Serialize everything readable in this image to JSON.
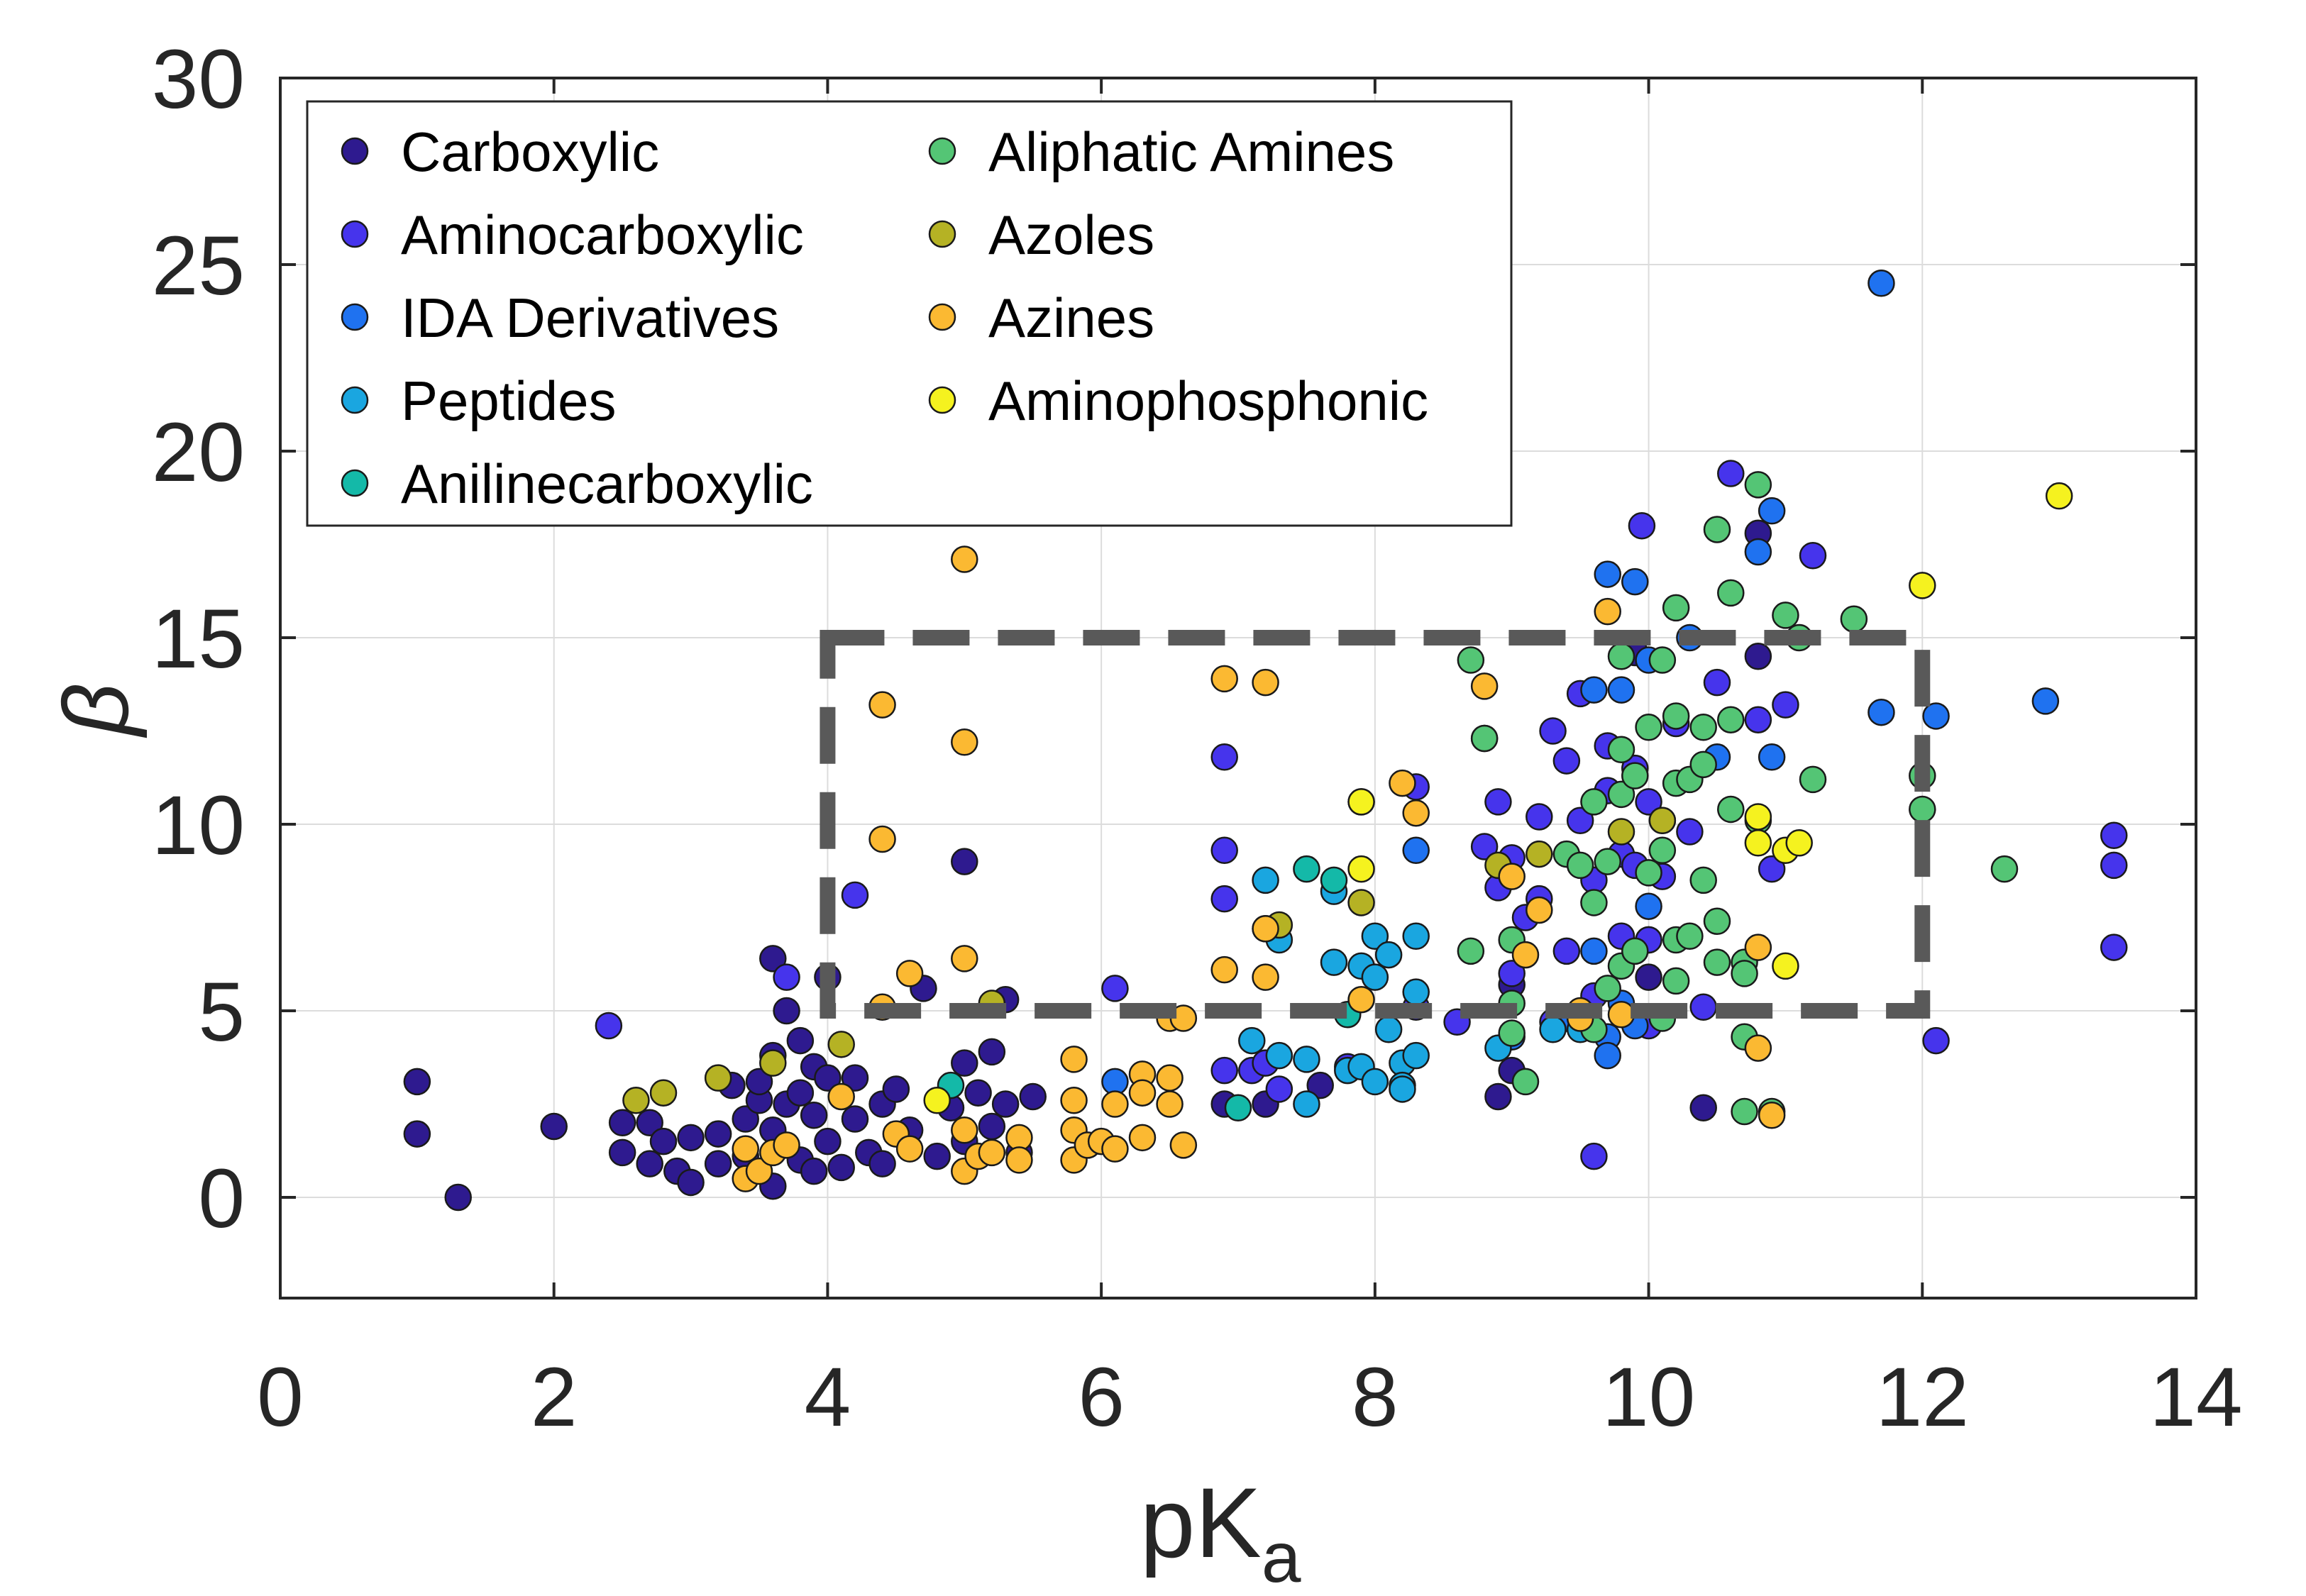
{
  "chart_data": {
    "type": "scatter",
    "xlabel": "pK",
    "xlabel_subscript": "a",
    "ylabel": "β",
    "xlim": [
      0,
      14
    ],
    "ylim": [
      -2.7,
      30
    ],
    "xticks": [
      "0",
      "2",
      "4",
      "6",
      "8",
      "10",
      "12",
      "14"
    ],
    "yticks": [
      "0",
      "5",
      "10",
      "15",
      "20",
      "25",
      "30"
    ],
    "grid": true,
    "legend_position": "top-left",
    "highlight_box": {
      "x0": 4,
      "x1": 12,
      "y0": 5,
      "y1": 15,
      "style": "dashed",
      "color": "#595959"
    },
    "series": [
      {
        "name": "Carboxylic",
        "color": "#2e1a8f",
        "points": [
          [
            1.0,
            3.1
          ],
          [
            1.0,
            1.7
          ],
          [
            1.3,
            0.0
          ],
          [
            2.0,
            1.9
          ],
          [
            2.5,
            2.0
          ],
          [
            2.5,
            1.2
          ],
          [
            2.7,
            2.0
          ],
          [
            2.7,
            0.9
          ],
          [
            2.8,
            1.5
          ],
          [
            2.9,
            0.7
          ],
          [
            3.0,
            0.4
          ],
          [
            3.0,
            1.6
          ],
          [
            3.2,
            1.7
          ],
          [
            3.2,
            0.9
          ],
          [
            3.3,
            3.0
          ],
          [
            3.4,
            2.1
          ],
          [
            3.4,
            1.1
          ],
          [
            3.5,
            2.6
          ],
          [
            3.5,
            3.1
          ],
          [
            3.6,
            3.8
          ],
          [
            3.6,
            1.8
          ],
          [
            3.6,
            0.3
          ],
          [
            3.6,
            6.4
          ],
          [
            3.7,
            2.5
          ],
          [
            3.7,
            5.0
          ],
          [
            3.8,
            4.2
          ],
          [
            3.8,
            2.8
          ],
          [
            3.8,
            1.0
          ],
          [
            3.9,
            3.5
          ],
          [
            3.9,
            2.2
          ],
          [
            3.9,
            0.7
          ],
          [
            4.0,
            1.5
          ],
          [
            4.0,
            3.2
          ],
          [
            4.0,
            5.9
          ],
          [
            4.1,
            0.8
          ],
          [
            4.2,
            2.1
          ],
          [
            4.2,
            3.2
          ],
          [
            4.3,
            1.2
          ],
          [
            4.4,
            2.5
          ],
          [
            4.4,
            0.9
          ],
          [
            4.5,
            2.9
          ],
          [
            4.6,
            1.8
          ],
          [
            4.7,
            5.6
          ],
          [
            4.8,
            1.1
          ],
          [
            4.9,
            2.4
          ],
          [
            5.0,
            3.6
          ],
          [
            5.0,
            9.0
          ],
          [
            5.0,
            1.5
          ],
          [
            5.1,
            2.8
          ],
          [
            5.2,
            3.9
          ],
          [
            5.2,
            1.9
          ],
          [
            5.3,
            5.3
          ],
          [
            5.3,
            2.5
          ],
          [
            5.4,
            1.2
          ],
          [
            5.5,
            2.7
          ],
          [
            6.9,
            2.5
          ],
          [
            7.2,
            2.5
          ],
          [
            7.6,
            3.0
          ],
          [
            8.9,
            2.7
          ],
          [
            9.0,
            5.7
          ],
          [
            9.0,
            3.4
          ],
          [
            9.9,
            14.6
          ],
          [
            10.0,
            6.9
          ],
          [
            10.0,
            5.9
          ],
          [
            10.4,
            2.4
          ],
          [
            10.8,
            14.5
          ],
          [
            10.8,
            17.8
          ]
        ]
      },
      {
        "name": "Aminocarboxylic",
        "color": "#4634ec",
        "points": [
          [
            2.4,
            4.6
          ],
          [
            3.7,
            5.9
          ],
          [
            4.2,
            8.1
          ],
          [
            6.1,
            5.6
          ],
          [
            6.9,
            9.3
          ],
          [
            6.9,
            11.8
          ],
          [
            6.9,
            8.0
          ],
          [
            6.9,
            3.4
          ],
          [
            7.1,
            3.4
          ],
          [
            7.2,
            3.6
          ],
          [
            7.3,
            2.9
          ],
          [
            7.8,
            3.5
          ],
          [
            8.3,
            11.0
          ],
          [
            8.3,
            5.1
          ],
          [
            8.6,
            4.7
          ],
          [
            8.8,
            12.3
          ],
          [
            8.8,
            9.4
          ],
          [
            8.9,
            8.3
          ],
          [
            8.9,
            10.6
          ],
          [
            9.0,
            6.0
          ],
          [
            9.0,
            9.1
          ],
          [
            9.1,
            7.5
          ],
          [
            9.2,
            10.2
          ],
          [
            9.2,
            8.0
          ],
          [
            9.3,
            12.5
          ],
          [
            9.3,
            4.7
          ],
          [
            9.4,
            11.7
          ],
          [
            9.4,
            6.6
          ],
          [
            9.5,
            13.5
          ],
          [
            9.5,
            10.1
          ],
          [
            9.6,
            8.5
          ],
          [
            9.6,
            5.4
          ],
          [
            9.7,
            10.9
          ],
          [
            9.7,
            12.1
          ],
          [
            9.8,
            9.2
          ],
          [
            9.8,
            7.0
          ],
          [
            9.9,
            11.5
          ],
          [
            9.9,
            8.9
          ],
          [
            10.0,
            10.6
          ],
          [
            10.0,
            6.9
          ],
          [
            10.0,
            4.6
          ],
          [
            10.1,
            8.6
          ],
          [
            10.2,
            12.7
          ],
          [
            10.3,
            9.8
          ],
          [
            10.4,
            5.1
          ],
          [
            10.5,
            13.8
          ],
          [
            10.6,
            19.4
          ],
          [
            10.8,
            12.8
          ],
          [
            10.9,
            8.8
          ],
          [
            11.0,
            13.2
          ],
          [
            11.2,
            17.2
          ],
          [
            12.1,
            4.2
          ],
          [
            13.4,
            9.7
          ],
          [
            13.4,
            8.9
          ],
          [
            13.4,
            6.7
          ],
          [
            9.6,
            1.1
          ],
          [
            9.95,
            18.0
          ]
        ]
      },
      {
        "name": "IDA Derivatives",
        "color": "#1f72f0",
        "points": [
          [
            8.3,
            9.3
          ],
          [
            9.7,
            16.7
          ],
          [
            9.9,
            16.5
          ],
          [
            9.6,
            13.6
          ],
          [
            9.8,
            13.6
          ],
          [
            10.0,
            14.4
          ],
          [
            10.3,
            15.0
          ],
          [
            10.5,
            11.8
          ],
          [
            10.9,
            11.8
          ],
          [
            10.9,
            18.4
          ],
          [
            10.8,
            17.3
          ],
          [
            11.7,
            24.5
          ],
          [
            11.7,
            13.0
          ],
          [
            12.1,
            12.9
          ],
          [
            12.9,
            13.3
          ],
          [
            9.4,
            4.8
          ],
          [
            9.6,
            6.6
          ],
          [
            9.7,
            4.3
          ],
          [
            9.8,
            5.2
          ],
          [
            9.9,
            4.6
          ],
          [
            10.0,
            7.8
          ],
          [
            9.7,
            3.8
          ],
          [
            6.1,
            3.1
          ],
          [
            9.0,
            4.3
          ]
        ]
      },
      {
        "name": "Peptides",
        "color": "#1aa6e0",
        "points": [
          [
            7.1,
            4.2
          ],
          [
            7.3,
            3.8
          ],
          [
            7.5,
            3.7
          ],
          [
            7.7,
            6.3
          ],
          [
            7.8,
            3.4
          ],
          [
            7.9,
            3.5
          ],
          [
            7.9,
            6.2
          ],
          [
            8.0,
            3.1
          ],
          [
            8.0,
            7.0
          ],
          [
            8.0,
            5.9
          ],
          [
            8.1,
            6.5
          ],
          [
            8.1,
            4.5
          ],
          [
            8.2,
            3.6
          ],
          [
            8.2,
            3.0
          ],
          [
            8.3,
            7.0
          ],
          [
            8.3,
            3.8
          ],
          [
            8.2,
            2.9
          ],
          [
            8.3,
            5.5
          ],
          [
            7.2,
            8.5
          ],
          [
            7.3,
            6.9
          ],
          [
            7.7,
            8.2
          ],
          [
            7.5,
            2.5
          ],
          [
            8.9,
            4.0
          ],
          [
            9.3,
            4.5
          ],
          [
            9.5,
            4.5
          ]
        ]
      },
      {
        "name": "Anilinecarboxylic",
        "color": "#14b9a8",
        "points": [
          [
            4.9,
            3.0
          ],
          [
            7.0,
            2.4
          ],
          [
            7.5,
            8.8
          ],
          [
            7.7,
            8.5
          ],
          [
            7.8,
            4.9
          ]
        ]
      },
      {
        "name": "Aliphatic Amines",
        "color": "#54c575",
        "points": [
          [
            8.7,
            14.4
          ],
          [
            8.8,
            12.3
          ],
          [
            8.7,
            6.6
          ],
          [
            9.0,
            4.4
          ],
          [
            9.0,
            5.2
          ],
          [
            9.0,
            6.9
          ],
          [
            9.1,
            3.1
          ],
          [
            9.4,
            9.2
          ],
          [
            9.5,
            8.9
          ],
          [
            9.6,
            7.9
          ],
          [
            9.6,
            10.6
          ],
          [
            9.6,
            4.5
          ],
          [
            9.7,
            9.0
          ],
          [
            9.7,
            5.6
          ],
          [
            9.8,
            10.8
          ],
          [
            9.8,
            14.5
          ],
          [
            9.8,
            12.0
          ],
          [
            9.8,
            6.2
          ],
          [
            9.9,
            11.3
          ],
          [
            9.9,
            6.6
          ],
          [
            10.0,
            12.6
          ],
          [
            10.0,
            8.7
          ],
          [
            10.1,
            10.1
          ],
          [
            10.1,
            14.4
          ],
          [
            10.1,
            9.3
          ],
          [
            10.1,
            4.8
          ],
          [
            10.2,
            12.9
          ],
          [
            10.2,
            11.1
          ],
          [
            10.2,
            6.9
          ],
          [
            10.2,
            15.8
          ],
          [
            10.2,
            5.8
          ],
          [
            10.3,
            11.2
          ],
          [
            10.3,
            7.0
          ],
          [
            10.4,
            12.6
          ],
          [
            10.4,
            11.6
          ],
          [
            10.4,
            8.5
          ],
          [
            10.5,
            7.4
          ],
          [
            10.5,
            6.3
          ],
          [
            10.5,
            17.9
          ],
          [
            10.6,
            16.2
          ],
          [
            10.6,
            12.8
          ],
          [
            10.6,
            10.4
          ],
          [
            10.7,
            6.3
          ],
          [
            10.7,
            6.0
          ],
          [
            10.7,
            4.3
          ],
          [
            10.7,
            2.3
          ],
          [
            10.8,
            19.1
          ],
          [
            10.8,
            10.1
          ],
          [
            10.9,
            2.3
          ],
          [
            11.0,
            15.6
          ],
          [
            11.1,
            15.0
          ],
          [
            11.2,
            11.2
          ],
          [
            11.5,
            15.5
          ],
          [
            12.0,
            11.3
          ],
          [
            12.0,
            10.4
          ],
          [
            12.6,
            8.8
          ]
        ]
      },
      {
        "name": "Azoles",
        "color": "#b5b224",
        "points": [
          [
            2.6,
            2.6
          ],
          [
            2.8,
            2.8
          ],
          [
            3.2,
            3.2
          ],
          [
            3.6,
            3.6
          ],
          [
            4.1,
            4.1
          ],
          [
            5.2,
            5.2
          ],
          [
            7.2,
            7.2
          ],
          [
            7.3,
            7.3
          ],
          [
            7.9,
            7.9
          ],
          [
            8.9,
            8.9
          ],
          [
            9.2,
            9.2
          ],
          [
            9.8,
            9.8
          ],
          [
            10.1,
            10.1
          ]
        ]
      },
      {
        "name": "Azines",
        "color": "#fbb932",
        "points": [
          [
            3.4,
            1.3
          ],
          [
            3.4,
            0.5
          ],
          [
            3.5,
            0.7
          ],
          [
            3.6,
            1.2
          ],
          [
            3.7,
            1.4
          ],
          [
            4.1,
            2.7
          ],
          [
            4.4,
            13.2
          ],
          [
            4.4,
            9.6
          ],
          [
            4.4,
            5.1
          ],
          [
            4.5,
            1.7
          ],
          [
            4.6,
            1.3
          ],
          [
            4.6,
            6.0
          ],
          [
            5.0,
            17.1
          ],
          [
            5.0,
            12.2
          ],
          [
            5.0,
            6.4
          ],
          [
            5.0,
            1.8
          ],
          [
            5.0,
            0.7
          ],
          [
            5.1,
            1.1
          ],
          [
            5.2,
            1.2
          ],
          [
            5.4,
            1.6
          ],
          [
            5.4,
            1.0
          ],
          [
            5.8,
            3.7
          ],
          [
            5.8,
            2.6
          ],
          [
            5.8,
            1.8
          ],
          [
            5.8,
            1.0
          ],
          [
            5.9,
            1.4
          ],
          [
            6.0,
            1.5
          ],
          [
            6.1,
            2.5
          ],
          [
            6.1,
            1.3
          ],
          [
            6.3,
            3.3
          ],
          [
            6.3,
            2.8
          ],
          [
            6.3,
            1.6
          ],
          [
            6.5,
            4.8
          ],
          [
            6.5,
            3.2
          ],
          [
            6.5,
            2.5
          ],
          [
            6.6,
            1.4
          ],
          [
            6.6,
            4.8
          ],
          [
            6.9,
            13.9
          ],
          [
            6.9,
            6.1
          ],
          [
            7.2,
            13.8
          ],
          [
            7.2,
            5.9
          ],
          [
            7.2,
            7.2
          ],
          [
            7.9,
            5.3
          ],
          [
            7.9,
            10.6
          ],
          [
            8.2,
            11.1
          ],
          [
            8.3,
            10.3
          ],
          [
            8.8,
            13.7
          ],
          [
            9.0,
            8.6
          ],
          [
            9.1,
            6.5
          ],
          [
            9.2,
            7.7
          ],
          [
            9.5,
            5.0
          ],
          [
            9.5,
            4.8
          ],
          [
            9.7,
            15.7
          ],
          [
            9.8,
            4.9
          ],
          [
            10.8,
            6.7
          ],
          [
            10.8,
            4.0
          ],
          [
            10.9,
            2.2
          ]
        ]
      },
      {
        "name": "Aminophosphonic",
        "color": "#f5f21f",
        "points": [
          [
            4.8,
            2.6
          ],
          [
            7.9,
            8.8
          ],
          [
            7.9,
            10.6
          ],
          [
            10.8,
            9.5
          ],
          [
            10.8,
            10.2
          ],
          [
            11.0,
            9.3
          ],
          [
            11.0,
            6.2
          ],
          [
            11.1,
            9.5
          ],
          [
            12.0,
            16.4
          ],
          [
            13.0,
            18.8
          ]
        ]
      }
    ]
  }
}
